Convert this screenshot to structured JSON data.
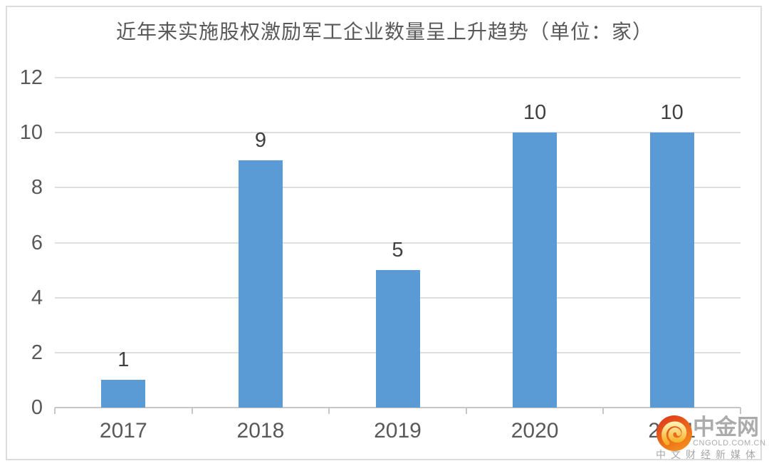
{
  "chart_data": {
    "type": "bar",
    "title": "近年来实施股权激励军工企业数量呈上升趋势（单位：家）",
    "categories": [
      "2017",
      "2018",
      "2019",
      "2020",
      "2021"
    ],
    "values": [
      1,
      9,
      5,
      10,
      10
    ],
    "value_labels": [
      "1",
      "9",
      "5",
      "10",
      "10"
    ],
    "xlabel": "",
    "ylabel": "",
    "ylim": [
      0,
      12
    ],
    "yticks": [
      12,
      10,
      8,
      6,
      4,
      2,
      0
    ],
    "grid": true,
    "legend_position": "none",
    "bar_color": "#5B9BD5"
  },
  "watermark": {
    "brand": "中金网",
    "domain": "CNGOLD.COM.CN",
    "tagline": "中文财经新媒体",
    "logo_icon": "cngold-swirl-icon",
    "logo_colors": {
      "circle_red": "#DE3119",
      "circle_orange": "#F28A1C",
      "swirl_gold_light": "#FFEFAF",
      "swirl_gold_dark": "#F6AE24",
      "text_gray": "#ABABAB"
    }
  },
  "colors": {
    "bar": "#5B9BD5",
    "gridline": "#DEDEDE",
    "axis_line": "#C6C6C6",
    "title_text": "#595959",
    "tick_text": "#595959",
    "value_text": "#404040",
    "frame_border": "#DCDCDC",
    "background": "#FFFFFF"
  }
}
